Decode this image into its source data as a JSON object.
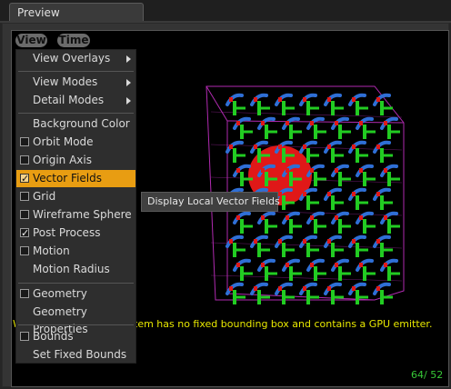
{
  "tab": {
    "title": "Preview"
  },
  "toolbar": {
    "view_label": "View",
    "time_label": "Time"
  },
  "menu": {
    "view_overlays": "View Overlays",
    "view_modes": "View Modes",
    "detail_modes": "Detail Modes",
    "background_color": "Background Color",
    "orbit_mode": "Orbit Mode",
    "origin_axis": "Origin Axis",
    "vector_fields": "Vector Fields",
    "grid": "Grid",
    "wireframe_sphere": "Wireframe Sphere",
    "post_process": "Post Process",
    "motion": "Motion",
    "motion_radius": "Motion Radius",
    "geometry": "Geometry",
    "geometry_properties": "Geometry Properties",
    "bounds": "Bounds",
    "set_fixed_bounds": "Set Fixed Bounds"
  },
  "checks": {
    "orbit_mode": false,
    "origin_axis": false,
    "vector_fields": true,
    "grid": false,
    "wireframe_sphere": false,
    "post_process": true,
    "motion": false,
    "geometry": false,
    "bounds": false
  },
  "tooltip": {
    "text": "Display Local Vector Fields"
  },
  "viewport": {
    "warning_text": "tem has no fixed bounding box and contains a GPU emitter.",
    "warning_edge": "W",
    "fps_text": "64/ 52"
  },
  "colors": {
    "highlight": "#e89d12",
    "warning": "#e8e800",
    "fps": "#37c837",
    "box": "#b02ab0",
    "green": "#22cc22",
    "red": "#e01818",
    "blue": "#2f6fd6"
  }
}
